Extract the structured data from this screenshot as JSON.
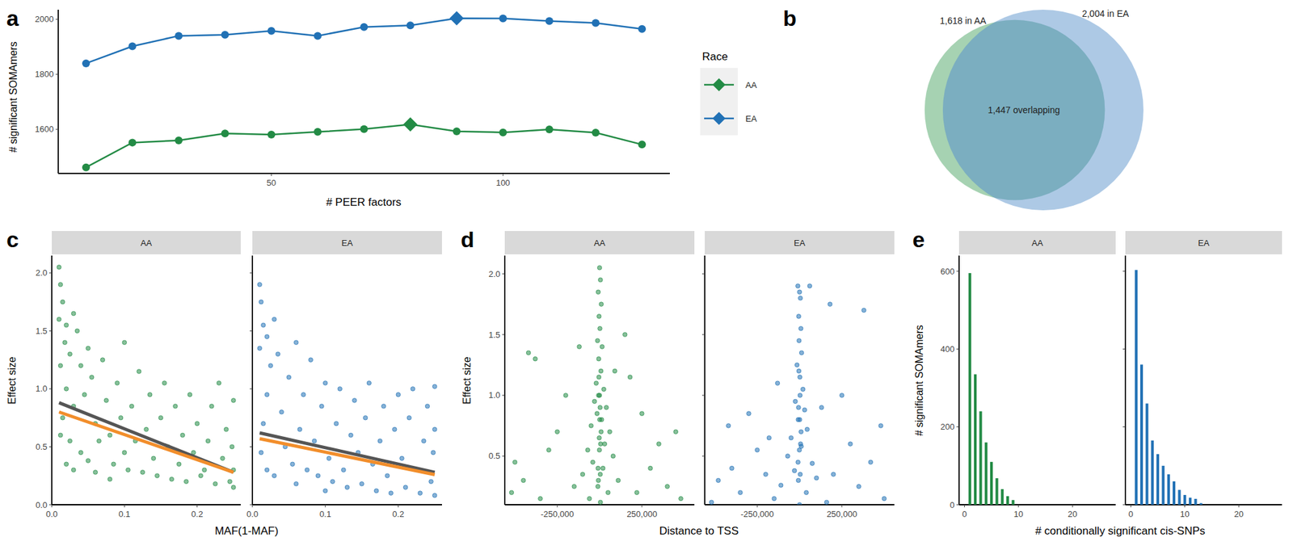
{
  "chart_data": [
    {
      "panel": "a",
      "type": "line",
      "x_label": "# PEER factors",
      "y_label": "# significant SOMAmers",
      "legend_title": "Race",
      "legend": "right",
      "marker": "circle",
      "x": [
        10,
        20,
        30,
        40,
        50,
        60,
        70,
        80,
        90,
        100,
        110,
        120,
        130
      ],
      "xlim": [
        4,
        136
      ],
      "ylim": [
        1440,
        2035
      ],
      "xticks": [
        50,
        100
      ],
      "yticks": [
        1600,
        1800,
        2000
      ],
      "series": [
        {
          "name": "AA",
          "color": "#238b45",
          "values": [
            1462,
            1552,
            1560,
            1585,
            1581,
            1591,
            1601,
            1618,
            1593,
            1589,
            1600,
            1588,
            1545
          ]
        },
        {
          "name": "EA",
          "color": "#2171b5",
          "values": [
            1840,
            1902,
            1940,
            1944,
            1958,
            1940,
            1972,
            1978,
            2004,
            2003,
            1994,
            1987,
            1965
          ]
        }
      ]
    },
    {
      "panel": "b",
      "type": "venn",
      "sets": [
        {
          "label": "1,618 in AA",
          "count": 1618,
          "color": "#3a9c55"
        },
        {
          "label": "2,004 in EA",
          "count": 2004,
          "color": "#5b93cc"
        }
      ],
      "overlap": 1447,
      "overlap_label": "1,447 overlapping"
    },
    {
      "panel": "c",
      "type": "scatter",
      "x_label": "MAF(1-MAF)",
      "y_label": "Effect size",
      "xlim": [
        0,
        0.26
      ],
      "ylim": [
        0,
        2.15
      ],
      "xticks": [
        {
          "value": 0,
          "label": "0.0"
        },
        {
          "value": 0.1,
          "label": "0.1"
        },
        {
          "value": 0.2,
          "label": "0.2"
        }
      ],
      "yticks": [
        {
          "value": 0,
          "label": "0.0"
        },
        {
          "value": 0.5,
          "label": "0.5"
        },
        {
          "value": 1,
          "label": "1.0"
        },
        {
          "value": 1.5,
          "label": "1.5"
        },
        {
          "value": 2,
          "label": "2.0"
        }
      ],
      "facets": [
        {
          "title": "AA",
          "series": [
            {
              "type": "scatter",
              "color": "#238b45",
              "x": [
                0.01,
                0.012,
                0.015,
                0.01,
                0.02,
                0.018,
                0.025,
                0.012,
                0.03,
                0.035,
                0.04,
                0.02,
                0.015,
                0.012,
                0.025,
                0.03,
                0.045,
                0.05,
                0.055,
                0.06,
                0.04,
                0.05,
                0.065,
                0.07,
                0.075,
                0.08,
                0.085,
                0.09,
                0.095,
                0.1,
                0.1,
                0.105,
                0.11,
                0.115,
                0.12,
                0.125,
                0.13,
                0.135,
                0.14,
                0.145,
                0.15,
                0.155,
                0.16,
                0.165,
                0.17,
                0.175,
                0.18,
                0.185,
                0.19,
                0.195,
                0.2,
                0.205,
                0.21,
                0.215,
                0.22,
                0.225,
                0.23,
                0.235,
                0.24,
                0.245,
                0.25,
                0.25,
                0.248,
                0.25,
                0.03,
                0.06,
                0.02,
                0.08
              ],
              "values": [
                2.05,
                1.9,
                1.75,
                1.6,
                1.55,
                1.4,
                1.3,
                1.2,
                1.65,
                1.5,
                1.2,
                1.0,
                0.75,
                0.6,
                0.55,
                0.85,
                0.95,
                1.35,
                1.1,
                0.7,
                0.45,
                0.38,
                0.55,
                1.25,
                0.9,
                0.6,
                0.35,
                1.05,
                0.75,
                0.45,
                1.4,
                0.3,
                0.85,
                0.55,
                1.15,
                0.28,
                0.65,
                0.95,
                0.4,
                0.25,
                0.75,
                1.05,
                0.5,
                0.22,
                0.85,
                0.35,
                0.6,
                0.2,
                0.95,
                0.45,
                0.7,
                0.25,
                0.3,
                0.55,
                0.85,
                0.18,
                1.05,
                0.4,
                0.65,
                0.2,
                0.9,
                0.15,
                0.5,
                0.3,
                0.3,
                0.28,
                0.35,
                0.22
              ]
            },
            {
              "type": "line",
              "color": "#555555",
              "x": [
                0.01,
                0.25
              ],
              "values": [
                0.88,
                0.28
              ]
            },
            {
              "type": "line",
              "color": "#f28e2b",
              "x": [
                0.01,
                0.25
              ],
              "values": [
                0.8,
                0.28
              ]
            }
          ]
        },
        {
          "title": "EA",
          "series": [
            {
              "type": "scatter",
              "color": "#2171b5",
              "x": [
                0.01,
                0.012,
                0.015,
                0.02,
                0.01,
                0.025,
                0.02,
                0.015,
                0.012,
                0.03,
                0.035,
                0.04,
                0.045,
                0.05,
                0.055,
                0.06,
                0.065,
                0.07,
                0.075,
                0.08,
                0.085,
                0.09,
                0.095,
                0.1,
                0.105,
                0.11,
                0.115,
                0.12,
                0.125,
                0.13,
                0.135,
                0.14,
                0.145,
                0.15,
                0.155,
                0.16,
                0.165,
                0.17,
                0.175,
                0.18,
                0.185,
                0.19,
                0.195,
                0.2,
                0.205,
                0.21,
                0.215,
                0.22,
                0.225,
                0.23,
                0.235,
                0.24,
                0.245,
                0.25,
                0.25,
                0.248,
                0.25,
                0.03,
                0.06,
                0.02,
                0.1
              ],
              "values": [
                1.9,
                1.75,
                1.55,
                1.45,
                1.35,
                1.2,
                0.95,
                0.7,
                0.45,
                1.6,
                1.3,
                0.8,
                0.5,
                1.1,
                0.35,
                1.4,
                0.65,
                0.95,
                0.3,
                1.25,
                0.55,
                0.25,
                0.85,
                1.05,
                0.4,
                0.2,
                0.7,
                1.0,
                0.3,
                0.15,
                0.6,
                0.9,
                0.45,
                0.18,
                0.75,
                1.05,
                0.35,
                0.12,
                0.55,
                0.85,
                0.25,
                0.1,
                0.65,
                0.95,
                0.4,
                0.15,
                0.75,
                1.0,
                0.3,
                0.1,
                0.55,
                0.85,
                0.2,
                1.02,
                0.08,
                0.45,
                0.65,
                0.25,
                0.18,
                0.3,
                0.12
              ]
            },
            {
              "type": "line",
              "color": "#555555",
              "x": [
                0.01,
                0.25
              ],
              "values": [
                0.62,
                0.28
              ]
            },
            {
              "type": "line",
              "color": "#f28e2b",
              "x": [
                0.01,
                0.25
              ],
              "values": [
                0.57,
                0.26
              ]
            }
          ]
        }
      ]
    },
    {
      "panel": "d",
      "type": "scatter",
      "x_label": "Distance to TSS",
      "y_label": "Effect size",
      "xlim": [
        -560000,
        560000
      ],
      "ylim": [
        0.1,
        2.15
      ],
      "xticks": [
        {
          "value": -250000,
          "label": "-250,000"
        },
        {
          "value": 250000,
          "label": "250,000"
        }
      ],
      "yticks": [
        {
          "value": 0.5,
          "label": "0.5"
        },
        {
          "value": 1,
          "label": "1.0"
        },
        {
          "value": 1.5,
          "label": "1.5"
        },
        {
          "value": 2,
          "label": "2.0"
        }
      ],
      "facets": [
        {
          "title": "AA",
          "series": [
            {
              "type": "scatter",
              "color": "#238b45",
              "x": [
                0,
                5000,
                -8000,
                10000,
                -3000,
                2000,
                -12000,
                15000,
                -5000,
                8000,
                -20000,
                25000,
                0,
                -30000,
                40000,
                -15000,
                12000,
                -50000,
                60000,
                -2000,
                30000,
                -70000,
                80000,
                -40000,
                20000,
                -100000,
                110000,
                -10000,
                50000,
                -60000,
                5000,
                -420000,
                -380000,
                -300000,
                -450000,
                -200000,
                -150000,
                -250000,
                -350000,
                -500000,
                -520000,
                180000,
                250000,
                300000,
                350000,
                400000,
                450000,
                150000,
                220000,
                480000,
                -120000,
                90000,
                3000,
                -6000,
                9000,
                -1000,
                4000,
                -7000,
                1000,
                -4000,
                6000,
                -9000
              ],
              "values": [
                2.05,
                1.95,
                1.85,
                1.75,
                1.65,
                1.55,
                1.45,
                1.4,
                1.3,
                1.2,
                1.1,
                1.05,
                1.0,
                0.95,
                0.9,
                0.85,
                0.8,
                0.75,
                0.7,
                0.65,
                0.6,
                0.55,
                0.5,
                0.45,
                0.4,
                0.35,
                0.3,
                0.25,
                0.2,
                0.15,
                0.12,
                1.35,
                1.3,
                0.55,
                0.3,
                1.0,
                0.25,
                0.7,
                0.15,
                0.45,
                0.2,
                1.15,
                0.85,
                0.4,
                0.6,
                0.25,
                0.7,
                1.5,
                0.2,
                0.15,
                1.4,
                1.2,
                0.9,
                1.0,
                0.7,
                0.55,
                0.35,
                0.3,
                0.8,
                1.15,
                0.6,
                0.4
              ]
            }
          ]
        },
        {
          "title": "EA",
          "series": [
            {
              "type": "scatter",
              "color": "#2171b5",
              "x": [
                -10000,
                0,
                5000,
                -5000,
                8000,
                -3000,
                12000,
                -15000,
                2000,
                20000,
                -25000,
                30000,
                -8000,
                45000,
                -50000,
                10000,
                -70000,
                75000,
                -30000,
                100000,
                -110000,
                40000,
                -150000,
                160000,
                0,
                60000,
                180000,
                380000,
                -420000,
                -480000,
                -300000,
                -350000,
                -250000,
                -200000,
                -400000,
                -520000,
                250000,
                300000,
                350000,
                420000,
                480000,
                500000,
                200000,
                130000,
                -130000,
                -180000,
                3000,
                -6000,
                9000,
                -1000,
                4000,
                -7000,
                1000,
                -4000,
                6000,
                -9000
              ],
              "values": [
                1.9,
                1.85,
                1.8,
                1.65,
                1.55,
                1.45,
                1.35,
                1.25,
                1.15,
                1.05,
                0.95,
                0.88,
                0.8,
                0.72,
                0.65,
                0.58,
                0.5,
                0.44,
                0.38,
                0.32,
                0.26,
                0.2,
                0.15,
                0.12,
                0.1,
                1.9,
                1.75,
                1.7,
                0.75,
                0.3,
                0.85,
                0.2,
                0.55,
                0.35,
                0.4,
                0.12,
                1.0,
                0.6,
                0.25,
                0.45,
                0.75,
                0.15,
                0.35,
                0.9,
                1.1,
                0.65,
                1.0,
                0.9,
                0.7,
                0.55,
                0.35,
                0.3,
                0.8,
                1.2,
                0.6,
                0.45
              ]
            }
          ]
        }
      ]
    },
    {
      "panel": "e",
      "type": "bar",
      "x_label": "# conditionally significant cis-SNPs",
      "y_label": "# significant SOMAmers",
      "xlim": [
        -1,
        28
      ],
      "ylim": [
        0,
        640
      ],
      "xticks": [
        0,
        10,
        20
      ],
      "yticks": [
        0,
        200,
        400,
        600
      ],
      "facets": [
        {
          "title": "AA",
          "series": [
            {
              "color": "#238b45",
              "x": [
                1,
                2,
                3,
                4,
                5,
                6,
                7,
                8,
                9
              ],
              "values": [
                595,
                335,
                240,
                160,
                110,
                68,
                40,
                22,
                12
              ]
            }
          ]
        },
        {
          "title": "EA",
          "series": [
            {
              "color": "#2171b5",
              "x": [
                1,
                2,
                3,
                4,
                5,
                6,
                7,
                8,
                9,
                10,
                11,
                12,
                13
              ],
              "values": [
                603,
                360,
                260,
                165,
                130,
                100,
                78,
                60,
                38,
                25,
                18,
                15,
                4
              ]
            }
          ]
        }
      ]
    }
  ]
}
